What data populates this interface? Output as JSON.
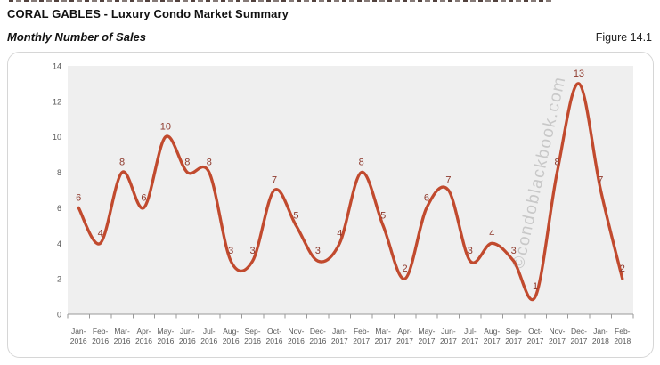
{
  "header": {
    "title": "CORAL GABLES - Luxury Condo Market Summary",
    "subtitle": "Monthly Number of Sales",
    "figure_label": "Figure 14.1"
  },
  "watermark": "©condoblackbook.com",
  "colors": {
    "line": "#c14a2e",
    "data_label": "#8e392c",
    "axis_text": "#595959",
    "axis_line": "#9a9a9a",
    "plot_bg": "#efefef",
    "chart_border": "#d6d6d6",
    "watermark": "#a9a9a9"
  },
  "chart_data": {
    "type": "line",
    "smooth": true,
    "title": "Monthly Number of Sales",
    "xlabel": "",
    "ylabel": "",
    "categories": [
      "Jan-2016",
      "Feb-2016",
      "Mar-2016",
      "Apr-2016",
      "May-2016",
      "Jun-2016",
      "Jul-2016",
      "Aug-2016",
      "Sep-2016",
      "Oct-2016",
      "Nov-2016",
      "Dec-2016",
      "Jan-2017",
      "Feb-2017",
      "Mar-2017",
      "Apr-2017",
      "May-2017",
      "Jun-2017",
      "Jul-2017",
      "Aug-2017",
      "Sep-2017",
      "Oct-2017",
      "Nov-2017",
      "Dec-2017",
      "Jan-2018",
      "Feb-2018"
    ],
    "values": [
      6,
      4,
      8,
      6,
      10,
      8,
      8,
      3,
      3,
      7,
      5,
      3,
      4,
      8,
      5,
      2,
      6,
      7,
      3,
      4,
      3,
      1,
      8,
      13,
      7,
      2
    ],
    "ylim": [
      0,
      14
    ],
    "ytick_step": 2,
    "grid": false,
    "legend": "none",
    "data_labels": true
  }
}
